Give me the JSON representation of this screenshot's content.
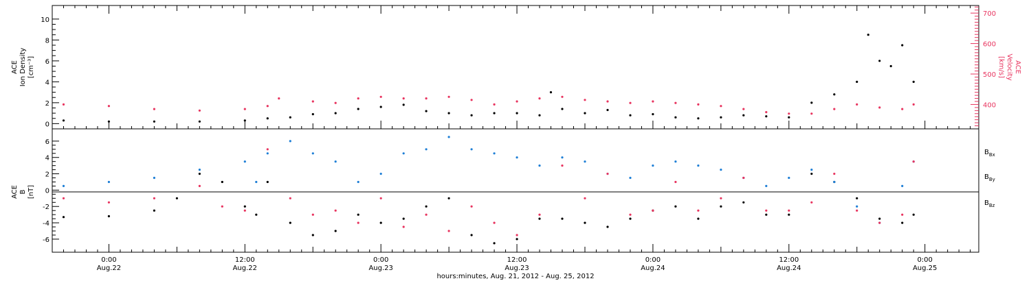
{
  "colors": {
    "bx": "#000000",
    "by": "#1e7fd6",
    "bz": "#e8345f",
    "density": "#000000",
    "velocity": "#e8345f"
  },
  "chart_data": [
    {
      "type": "scatter",
      "panel": "top",
      "ylabel_left": [
        "ACE",
        "Ion Density",
        "[cm⁻³]"
      ],
      "ylabel_right": [
        "ACE",
        "Velocity",
        "[km/s]"
      ],
      "ylim_left": [
        -0.5,
        11.3
      ],
      "ylim_right": [
        320,
        725
      ],
      "yticks_left": [
        0,
        2,
        4,
        6,
        8,
        10
      ],
      "yticks_right": [
        400,
        500,
        600,
        700
      ],
      "series": [
        {
          "axis": "left",
          "color": "#000000",
          "points": [
            [
              "2012-08-21T20:00",
              0.3
            ],
            [
              "2012-08-22T00:00",
              0.2
            ],
            [
              "2012-08-22T04:00",
              0.2
            ],
            [
              "2012-08-22T08:00",
              0.2
            ],
            [
              "2012-08-22T12:00",
              0.3
            ],
            [
              "2012-08-22T14:00",
              0.5
            ],
            [
              "2012-08-22T16:00",
              0.6
            ],
            [
              "2012-08-22T18:00",
              0.9
            ],
            [
              "2012-08-22T20:00",
              1.0
            ],
            [
              "2012-08-22T22:00",
              1.4
            ],
            [
              "2012-08-23T00:00",
              1.6
            ],
            [
              "2012-08-23T02:00",
              1.8
            ],
            [
              "2012-08-23T04:00",
              1.2
            ],
            [
              "2012-08-23T06:00",
              1.0
            ],
            [
              "2012-08-23T08:00",
              0.8
            ],
            [
              "2012-08-23T10:00",
              1.0
            ],
            [
              "2012-08-23T12:00",
              1.0
            ],
            [
              "2012-08-23T14:00",
              0.8
            ],
            [
              "2012-08-23T15:00",
              3.0
            ],
            [
              "2012-08-23T16:00",
              1.4
            ],
            [
              "2012-08-23T18:00",
              1.0
            ],
            [
              "2012-08-23T20:00",
              1.3
            ],
            [
              "2012-08-23T22:00",
              0.8
            ],
            [
              "2012-08-24T00:00",
              0.9
            ],
            [
              "2012-08-24T02:00",
              0.6
            ],
            [
              "2012-08-24T04:00",
              0.5
            ],
            [
              "2012-08-24T06:00",
              0.6
            ],
            [
              "2012-08-24T08:00",
              0.8
            ],
            [
              "2012-08-24T10:00",
              0.7
            ],
            [
              "2012-08-24T12:00",
              0.6
            ],
            [
              "2012-08-24T14:00",
              2.0
            ],
            [
              "2012-08-24T16:00",
              2.8
            ],
            [
              "2012-08-24T18:00",
              4.0
            ],
            [
              "2012-08-24T19:00",
              8.5
            ],
            [
              "2012-08-24T20:00",
              6.0
            ],
            [
              "2012-08-24T21:00",
              5.5
            ],
            [
              "2012-08-24T22:00",
              7.5
            ],
            [
              "2012-08-24T23:00",
              4.0
            ]
          ]
        },
        {
          "axis": "right",
          "color": "#e8345f",
          "points": [
            [
              "2012-08-21T20:00",
              400
            ],
            [
              "2012-08-22T00:00",
              395
            ],
            [
              "2012-08-22T04:00",
              385
            ],
            [
              "2012-08-22T08:00",
              380
            ],
            [
              "2012-08-22T12:00",
              385
            ],
            [
              "2012-08-22T14:00",
              395
            ],
            [
              "2012-08-22T15:00",
              420
            ],
            [
              "2012-08-22T18:00",
              410
            ],
            [
              "2012-08-22T20:00",
              405
            ],
            [
              "2012-08-22T22:00",
              420
            ],
            [
              "2012-08-23T00:00",
              425
            ],
            [
              "2012-08-23T02:00",
              420
            ],
            [
              "2012-08-23T04:00",
              420
            ],
            [
              "2012-08-23T06:00",
              425
            ],
            [
              "2012-08-23T08:00",
              415
            ],
            [
              "2012-08-23T10:00",
              400
            ],
            [
              "2012-08-23T12:00",
              410
            ],
            [
              "2012-08-23T14:00",
              420
            ],
            [
              "2012-08-23T16:00",
              425
            ],
            [
              "2012-08-23T18:00",
              415
            ],
            [
              "2012-08-23T20:00",
              410
            ],
            [
              "2012-08-23T22:00",
              405
            ],
            [
              "2012-08-24T00:00",
              410
            ],
            [
              "2012-08-24T02:00",
              405
            ],
            [
              "2012-08-24T04:00",
              400
            ],
            [
              "2012-08-24T06:00",
              395
            ],
            [
              "2012-08-24T08:00",
              385
            ],
            [
              "2012-08-24T10:00",
              375
            ],
            [
              "2012-08-24T12:00",
              370
            ],
            [
              "2012-08-24T14:00",
              370
            ],
            [
              "2012-08-24T16:00",
              385
            ],
            [
              "2012-08-24T18:00",
              400
            ],
            [
              "2012-08-24T20:00",
              390
            ],
            [
              "2012-08-24T22:00",
              385
            ],
            [
              "2012-08-24T23:00",
              400
            ]
          ]
        }
      ]
    },
    {
      "type": "scatter",
      "panel": "bottom",
      "ylabel_left": [
        "ACE",
        "B",
        "[nT]"
      ],
      "ylim_left": [
        -7.6,
        7.5
      ],
      "yticks_left": [
        -6,
        -4,
        -2,
        0,
        2,
        4,
        6
      ],
      "series": [
        {
          "name": "Bx",
          "color": "#000000",
          "points": [
            [
              "2012-08-21T20:00",
              -3.3
            ],
            [
              "2012-08-22T00:00",
              -3.2
            ],
            [
              "2012-08-22T04:00",
              -2.5
            ],
            [
              "2012-08-22T06:00",
              -1.0
            ],
            [
              "2012-08-22T08:00",
              2.0
            ],
            [
              "2012-08-22T10:00",
              1.0
            ],
            [
              "2012-08-22T12:00",
              -2.0
            ],
            [
              "2012-08-22T13:00",
              -3.0
            ],
            [
              "2012-08-22T14:00",
              1.0
            ],
            [
              "2012-08-22T16:00",
              -4.0
            ],
            [
              "2012-08-22T18:00",
              -5.5
            ],
            [
              "2012-08-22T20:00",
              -5.0
            ],
            [
              "2012-08-22T22:00",
              -3.0
            ],
            [
              "2012-08-23T00:00",
              -4.0
            ],
            [
              "2012-08-23T02:00",
              -3.5
            ],
            [
              "2012-08-23T04:00",
              -2.0
            ],
            [
              "2012-08-23T06:00",
              -1.0
            ],
            [
              "2012-08-23T08:00",
              -5.5
            ],
            [
              "2012-08-23T10:00",
              -6.5
            ],
            [
              "2012-08-23T12:00",
              -6.0
            ],
            [
              "2012-08-23T14:00",
              -3.5
            ],
            [
              "2012-08-23T16:00",
              -3.5
            ],
            [
              "2012-08-23T18:00",
              -4.0
            ],
            [
              "2012-08-23T20:00",
              -4.5
            ],
            [
              "2012-08-23T22:00",
              -3.5
            ],
            [
              "2012-08-24T00:00",
              -2.5
            ],
            [
              "2012-08-24T02:00",
              -2.0
            ],
            [
              "2012-08-24T04:00",
              -3.5
            ],
            [
              "2012-08-24T06:00",
              -2.0
            ],
            [
              "2012-08-24T08:00",
              -1.5
            ],
            [
              "2012-08-24T10:00",
              -3.0
            ],
            [
              "2012-08-24T12:00",
              -3.0
            ],
            [
              "2012-08-24T14:00",
              2.0
            ],
            [
              "2012-08-24T16:00",
              1.0
            ],
            [
              "2012-08-24T18:00",
              -1.0
            ],
            [
              "2012-08-24T20:00",
              -3.5
            ],
            [
              "2012-08-24T22:00",
              -4.0
            ],
            [
              "2012-08-24T23:00",
              -3.0
            ]
          ]
        },
        {
          "name": "By",
          "color": "#1e7fd6",
          "points": [
            [
              "2012-08-21T20:00",
              0.5
            ],
            [
              "2012-08-22T00:00",
              1.0
            ],
            [
              "2012-08-22T04:00",
              1.5
            ],
            [
              "2012-08-22T08:00",
              2.5
            ],
            [
              "2012-08-22T12:00",
              3.5
            ],
            [
              "2012-08-22T13:00",
              1.0
            ],
            [
              "2012-08-22T14:00",
              4.5
            ],
            [
              "2012-08-22T16:00",
              6.0
            ],
            [
              "2012-08-22T18:00",
              4.5
            ],
            [
              "2012-08-22T20:00",
              3.5
            ],
            [
              "2012-08-22T22:00",
              1.0
            ],
            [
              "2012-08-23T00:00",
              2.0
            ],
            [
              "2012-08-23T02:00",
              4.5
            ],
            [
              "2012-08-23T04:00",
              5.0
            ],
            [
              "2012-08-23T06:00",
              6.5
            ],
            [
              "2012-08-23T08:00",
              5.0
            ],
            [
              "2012-08-23T10:00",
              4.5
            ],
            [
              "2012-08-23T12:00",
              4.0
            ],
            [
              "2012-08-23T14:00",
              3.0
            ],
            [
              "2012-08-23T16:00",
              4.0
            ],
            [
              "2012-08-23T18:00",
              3.5
            ],
            [
              "2012-08-23T20:00",
              2.0
            ],
            [
              "2012-08-23T22:00",
              1.5
            ],
            [
              "2012-08-24T00:00",
              3.0
            ],
            [
              "2012-08-24T02:00",
              3.5
            ],
            [
              "2012-08-24T04:00",
              3.0
            ],
            [
              "2012-08-24T06:00",
              2.5
            ],
            [
              "2012-08-24T08:00",
              1.5
            ],
            [
              "2012-08-24T10:00",
              0.5
            ],
            [
              "2012-08-24T12:00",
              1.5
            ],
            [
              "2012-08-24T14:00",
              2.5
            ],
            [
              "2012-08-24T16:00",
              1.0
            ],
            [
              "2012-08-24T18:00",
              -2.0
            ],
            [
              "2012-08-24T20:00",
              -4.0
            ],
            [
              "2012-08-24T22:00",
              0.5
            ],
            [
              "2012-08-24T23:00",
              3.5
            ]
          ]
        },
        {
          "name": "Bz",
          "color": "#e8345f",
          "points": [
            [
              "2012-08-21T20:00",
              -1.0
            ],
            [
              "2012-08-22T00:00",
              -1.5
            ],
            [
              "2012-08-22T04:00",
              -1.0
            ],
            [
              "2012-08-22T08:00",
              0.5
            ],
            [
              "2012-08-22T10:00",
              -2.0
            ],
            [
              "2012-08-22T12:00",
              -2.5
            ],
            [
              "2012-08-22T14:00",
              5.0
            ],
            [
              "2012-08-22T16:00",
              -1.0
            ],
            [
              "2012-08-22T18:00",
              -3.0
            ],
            [
              "2012-08-22T20:00",
              -2.5
            ],
            [
              "2012-08-22T22:00",
              -4.0
            ],
            [
              "2012-08-23T00:00",
              -1.0
            ],
            [
              "2012-08-23T02:00",
              -4.5
            ],
            [
              "2012-08-23T04:00",
              -3.0
            ],
            [
              "2012-08-23T06:00",
              -5.0
            ],
            [
              "2012-08-23T08:00",
              -2.0
            ],
            [
              "2012-08-23T10:00",
              -4.0
            ],
            [
              "2012-08-23T12:00",
              -5.5
            ],
            [
              "2012-08-23T14:00",
              -3.0
            ],
            [
              "2012-08-23T16:00",
              3.0
            ],
            [
              "2012-08-23T18:00",
              -1.0
            ],
            [
              "2012-08-23T20:00",
              2.0
            ],
            [
              "2012-08-23T22:00",
              -3.0
            ],
            [
              "2012-08-24T00:00",
              -2.5
            ],
            [
              "2012-08-24T02:00",
              1.0
            ],
            [
              "2012-08-24T04:00",
              -2.5
            ],
            [
              "2012-08-24T06:00",
              -1.0
            ],
            [
              "2012-08-24T08:00",
              1.5
            ],
            [
              "2012-08-24T10:00",
              -2.5
            ],
            [
              "2012-08-24T12:00",
              -2.5
            ],
            [
              "2012-08-24T14:00",
              -1.5
            ],
            [
              "2012-08-24T16:00",
              2.0
            ],
            [
              "2012-08-24T18:00",
              -2.5
            ],
            [
              "2012-08-24T20:00",
              -4.0
            ],
            [
              "2012-08-24T22:00",
              -3.0
            ],
            [
              "2012-08-24T23:00",
              3.5
            ]
          ]
        }
      ]
    }
  ],
  "x_axis": {
    "range": [
      "2012-08-21T19:00",
      "2012-08-25T04:45"
    ],
    "ticks": [
      {
        "time": "2012-08-22T00:00",
        "line1": "0:00",
        "line2": "Aug.22"
      },
      {
        "time": "2012-08-22T12:00",
        "line1": "12:00",
        "line2": "Aug.22"
      },
      {
        "time": "2012-08-23T00:00",
        "line1": "0:00",
        "line2": "Aug.23"
      },
      {
        "time": "2012-08-23T12:00",
        "line1": "12:00",
        "line2": "Aug.23"
      },
      {
        "time": "2012-08-24T00:00",
        "line1": "0:00",
        "line2": "Aug.24"
      },
      {
        "time": "2012-08-24T12:00",
        "line1": "12:00",
        "line2": "Aug.24"
      },
      {
        "time": "2012-08-25T00:00",
        "line1": "0:00",
        "line2": "Aug.25"
      }
    ],
    "title": "hours:minutes, Aug. 21, 2012 - Aug. 25, 2012"
  },
  "legend": [
    "Bx",
    "By",
    "Bz"
  ]
}
